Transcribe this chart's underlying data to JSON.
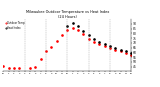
{
  "title": "Milwaukee Outdoor Temperature vs Heat Index\n(24 Hours)",
  "title_color": "#000000",
  "background_color": "#ffffff",
  "x_labels": [
    "12",
    "1",
    "2",
    "3",
    "4",
    "5",
    "6",
    "7",
    "8",
    "9",
    "10",
    "11",
    "12",
    "1",
    "2",
    "3",
    "4",
    "5",
    "6",
    "7",
    "8",
    "9",
    "10",
    "11",
    "12"
  ],
  "temp_data": [
    [
      0,
      46
    ],
    [
      1,
      44
    ],
    [
      2,
      44
    ],
    [
      3,
      44
    ],
    [
      5,
      44
    ],
    [
      6,
      45
    ],
    [
      7,
      53
    ],
    [
      8,
      61
    ],
    [
      9,
      66
    ],
    [
      10,
      72
    ],
    [
      11,
      78
    ],
    [
      12,
      84
    ],
    [
      13,
      86
    ],
    [
      14,
      84
    ],
    [
      15,
      79
    ],
    [
      16,
      74
    ],
    [
      17,
      71
    ],
    [
      18,
      69
    ],
    [
      19,
      67
    ],
    [
      20,
      65
    ],
    [
      21,
      63
    ],
    [
      22,
      61
    ],
    [
      23,
      59
    ],
    [
      24,
      57
    ]
  ],
  "heat_data": [
    [
      12,
      88
    ],
    [
      13,
      91
    ],
    [
      14,
      88
    ],
    [
      15,
      83
    ],
    [
      16,
      78
    ],
    [
      17,
      74
    ],
    [
      18,
      71
    ],
    [
      19,
      69
    ],
    [
      20,
      67
    ],
    [
      21,
      65
    ],
    [
      22,
      63
    ],
    [
      23,
      61
    ],
    [
      24,
      59
    ]
  ],
  "temp_color": "#ff0000",
  "heat_color": "#000000",
  "ylim": [
    40,
    95
  ],
  "ytick_labels": [
    "45",
    "50",
    "55",
    "60",
    "65",
    "70",
    "75",
    "80",
    "85",
    "90"
  ],
  "ytick_values": [
    45,
    50,
    55,
    60,
    65,
    70,
    75,
    80,
    85,
    90
  ],
  "grid_positions": [
    4,
    8,
    12,
    16,
    20
  ],
  "legend_items": [
    "Outdoor Temp",
    "Heat Index"
  ]
}
